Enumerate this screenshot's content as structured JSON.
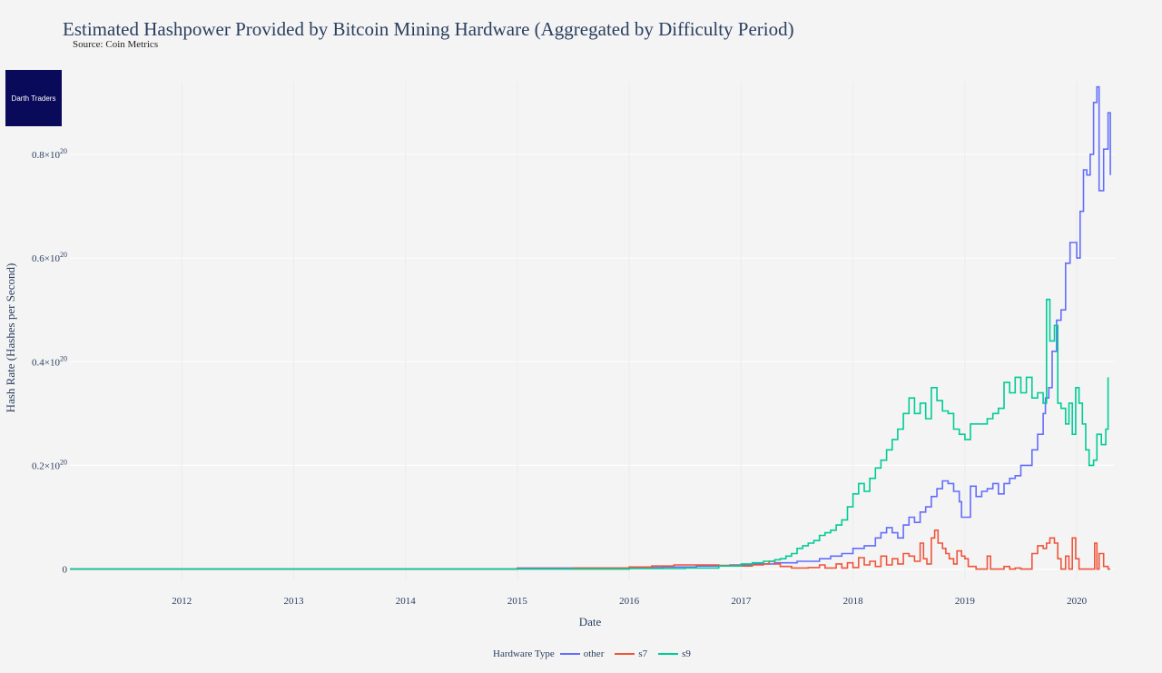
{
  "header": {
    "title": "Estimated Hashpower Provided by Bitcoin Mining Hardware  (Aggregated by Difficulty Period)",
    "subtitle": "Source: Coin Metrics"
  },
  "logo": {
    "text": "Darth Traders"
  },
  "legend": {
    "title": "Hardware Type"
  },
  "chart_data": {
    "type": "line",
    "line_shape": "step",
    "title": "Estimated Hashpower Provided by Bitcoin Mining Hardware  (Aggregated by Difficulty Period)",
    "xlabel": "Date",
    "ylabel": "Hash Rate (Hashes per Second)",
    "xlim": [
      2011.0,
      2020.34
    ],
    "ylim": [
      -0.02,
      0.94
    ],
    "x_ticks": [
      {
        "value": 2012,
        "label": "2012"
      },
      {
        "value": 2013,
        "label": "2013"
      },
      {
        "value": 2014,
        "label": "2014"
      },
      {
        "value": 2015,
        "label": "2015"
      },
      {
        "value": 2016,
        "label": "2016"
      },
      {
        "value": 2017,
        "label": "2017"
      },
      {
        "value": 2018,
        "label": "2018"
      },
      {
        "value": 2019,
        "label": "2019"
      },
      {
        "value": 2020,
        "label": "2020"
      }
    ],
    "y_ticks": [
      {
        "value": 0,
        "label": "0",
        "exp": ""
      },
      {
        "value": 0.2,
        "label": "0.2×10",
        "exp": "20"
      },
      {
        "value": 0.4,
        "label": "0.4×10",
        "exp": "20"
      },
      {
        "value": 0.6,
        "label": "0.6×10",
        "exp": "20"
      },
      {
        "value": 0.8,
        "label": "0.8×10",
        "exp": "20"
      }
    ],
    "grid": true,
    "legend_position": "bottom-center",
    "series": [
      {
        "name": "other",
        "color": "#636efa",
        "points": [
          [
            2011.0,
            0
          ],
          [
            2014.5,
            0
          ],
          [
            2015.0,
            0.002
          ],
          [
            2015.5,
            0.002
          ],
          [
            2016.0,
            0.003
          ],
          [
            2016.3,
            0.004
          ],
          [
            2016.6,
            0.006
          ],
          [
            2016.9,
            0.008
          ],
          [
            2017.1,
            0.01
          ],
          [
            2017.3,
            0.012
          ],
          [
            2017.5,
            0.015
          ],
          [
            2017.7,
            0.02
          ],
          [
            2017.8,
            0.025
          ],
          [
            2017.9,
            0.03
          ],
          [
            2018.0,
            0.04
          ],
          [
            2018.1,
            0.045
          ],
          [
            2018.2,
            0.06
          ],
          [
            2018.25,
            0.07
          ],
          [
            2018.3,
            0.08
          ],
          [
            2018.35,
            0.07
          ],
          [
            2018.4,
            0.06
          ],
          [
            2018.45,
            0.085
          ],
          [
            2018.5,
            0.1
          ],
          [
            2018.55,
            0.09
          ],
          [
            2018.6,
            0.11
          ],
          [
            2018.65,
            0.12
          ],
          [
            2018.7,
            0.14
          ],
          [
            2018.75,
            0.155
          ],
          [
            2018.8,
            0.17
          ],
          [
            2018.85,
            0.165
          ],
          [
            2018.9,
            0.15
          ],
          [
            2018.95,
            0.13
          ],
          [
            2018.97,
            0.1
          ],
          [
            2019.05,
            0.16
          ],
          [
            2019.1,
            0.14
          ],
          [
            2019.15,
            0.15
          ],
          [
            2019.2,
            0.155
          ],
          [
            2019.25,
            0.165
          ],
          [
            2019.3,
            0.145
          ],
          [
            2019.35,
            0.165
          ],
          [
            2019.4,
            0.175
          ],
          [
            2019.45,
            0.18
          ],
          [
            2019.5,
            0.2
          ],
          [
            2019.55,
            0.2
          ],
          [
            2019.6,
            0.23
          ],
          [
            2019.65,
            0.26
          ],
          [
            2019.7,
            0.3
          ],
          [
            2019.72,
            0.33
          ],
          [
            2019.75,
            0.35
          ],
          [
            2019.78,
            0.42
          ],
          [
            2019.82,
            0.48
          ],
          [
            2019.86,
            0.5
          ],
          [
            2019.9,
            0.59
          ],
          [
            2019.94,
            0.63
          ],
          [
            2019.97,
            0.63
          ],
          [
            2020.0,
            0.6
          ],
          [
            2020.03,
            0.69
          ],
          [
            2020.06,
            0.77
          ],
          [
            2020.09,
            0.76
          ],
          [
            2020.12,
            0.8
          ],
          [
            2020.15,
            0.9
          ],
          [
            2020.18,
            0.93
          ],
          [
            2020.2,
            0.73
          ],
          [
            2020.24,
            0.81
          ],
          [
            2020.28,
            0.88
          ],
          [
            2020.3,
            0.76
          ]
        ]
      },
      {
        "name": "s7",
        "color": "#ef553b",
        "points": [
          [
            2011.0,
            0
          ],
          [
            2014.8,
            0
          ],
          [
            2015.0,
            0.001
          ],
          [
            2015.5,
            0.002
          ],
          [
            2016.0,
            0.004
          ],
          [
            2016.2,
            0.006
          ],
          [
            2016.4,
            0.008
          ],
          [
            2016.6,
            0.008
          ],
          [
            2016.8,
            0.007
          ],
          [
            2017.0,
            0.006
          ],
          [
            2017.1,
            0.008
          ],
          [
            2017.2,
            0.01
          ],
          [
            2017.25,
            0.015
          ],
          [
            2017.3,
            0.01
          ],
          [
            2017.35,
            0.005
          ],
          [
            2017.45,
            0.002
          ],
          [
            2017.6,
            0.003
          ],
          [
            2017.7,
            0.008
          ],
          [
            2017.75,
            0.002
          ],
          [
            2017.85,
            0.01
          ],
          [
            2017.9,
            0.002
          ],
          [
            2017.95,
            0.012
          ],
          [
            2018.0,
            0.003
          ],
          [
            2018.05,
            0.022
          ],
          [
            2018.1,
            0.008
          ],
          [
            2018.15,
            0.015
          ],
          [
            2018.2,
            0.005
          ],
          [
            2018.25,
            0.025
          ],
          [
            2018.3,
            0.008
          ],
          [
            2018.35,
            0.02
          ],
          [
            2018.4,
            0.01
          ],
          [
            2018.45,
            0.03
          ],
          [
            2018.5,
            0.025
          ],
          [
            2018.55,
            0.015
          ],
          [
            2018.6,
            0.05
          ],
          [
            2018.63,
            0.02
          ],
          [
            2018.66,
            0.01
          ],
          [
            2018.7,
            0.06
          ],
          [
            2018.73,
            0.075
          ],
          [
            2018.76,
            0.05
          ],
          [
            2018.8,
            0.04
          ],
          [
            2018.83,
            0.03
          ],
          [
            2018.86,
            0.02
          ],
          [
            2018.9,
            0.01
          ],
          [
            2018.93,
            0.035
          ],
          [
            2018.97,
            0.025
          ],
          [
            2019.0,
            0.02
          ],
          [
            2019.03,
            0.005
          ],
          [
            2019.1,
            0.0
          ],
          [
            2019.18,
            0.0
          ],
          [
            2019.2,
            0.025
          ],
          [
            2019.23,
            0.0
          ],
          [
            2019.3,
            0.0
          ],
          [
            2019.35,
            0.005
          ],
          [
            2019.4,
            0.0
          ],
          [
            2019.45,
            0.002
          ],
          [
            2019.5,
            0.0
          ],
          [
            2019.6,
            0.03
          ],
          [
            2019.65,
            0.045
          ],
          [
            2019.7,
            0.04
          ],
          [
            2019.73,
            0.05
          ],
          [
            2019.76,
            0.06
          ],
          [
            2019.8,
            0.05
          ],
          [
            2019.83,
            0.02
          ],
          [
            2019.86,
            0.0
          ],
          [
            2019.9,
            0.025
          ],
          [
            2019.93,
            0.0
          ],
          [
            2019.96,
            0.06
          ],
          [
            2019.99,
            0.02
          ],
          [
            2020.02,
            0.0
          ],
          [
            2020.08,
            0.0
          ],
          [
            2020.12,
            0.0
          ],
          [
            2020.16,
            0.05
          ],
          [
            2020.18,
            0.0
          ],
          [
            2020.2,
            0.03
          ],
          [
            2020.24,
            0.005
          ],
          [
            2020.28,
            0.0
          ],
          [
            2020.3,
            0.0
          ]
        ]
      },
      {
        "name": "s9",
        "color": "#00cc96",
        "points": [
          [
            2011.0,
            0
          ],
          [
            2015.5,
            0
          ],
          [
            2016.0,
            0.001
          ],
          [
            2016.5,
            0.002
          ],
          [
            2016.8,
            0.006
          ],
          [
            2017.0,
            0.01
          ],
          [
            2017.1,
            0.012
          ],
          [
            2017.2,
            0.015
          ],
          [
            2017.3,
            0.018
          ],
          [
            2017.35,
            0.02
          ],
          [
            2017.4,
            0.025
          ],
          [
            2017.45,
            0.03
          ],
          [
            2017.5,
            0.04
          ],
          [
            2017.55,
            0.045
          ],
          [
            2017.6,
            0.05
          ],
          [
            2017.65,
            0.055
          ],
          [
            2017.7,
            0.065
          ],
          [
            2017.75,
            0.07
          ],
          [
            2017.8,
            0.075
          ],
          [
            2017.85,
            0.085
          ],
          [
            2017.9,
            0.095
          ],
          [
            2017.95,
            0.12
          ],
          [
            2018.0,
            0.145
          ],
          [
            2018.05,
            0.165
          ],
          [
            2018.1,
            0.15
          ],
          [
            2018.15,
            0.175
          ],
          [
            2018.2,
            0.195
          ],
          [
            2018.25,
            0.21
          ],
          [
            2018.3,
            0.23
          ],
          [
            2018.35,
            0.25
          ],
          [
            2018.4,
            0.27
          ],
          [
            2018.45,
            0.3
          ],
          [
            2018.5,
            0.33
          ],
          [
            2018.55,
            0.3
          ],
          [
            2018.6,
            0.32
          ],
          [
            2018.65,
            0.29
          ],
          [
            2018.7,
            0.35
          ],
          [
            2018.75,
            0.325
          ],
          [
            2018.8,
            0.305
          ],
          [
            2018.85,
            0.3
          ],
          [
            2018.9,
            0.27
          ],
          [
            2018.95,
            0.26
          ],
          [
            2019.0,
            0.25
          ],
          [
            2019.05,
            0.28
          ],
          [
            2019.1,
            0.28
          ],
          [
            2019.15,
            0.28
          ],
          [
            2019.2,
            0.29
          ],
          [
            2019.25,
            0.3
          ],
          [
            2019.3,
            0.31
          ],
          [
            2019.35,
            0.36
          ],
          [
            2019.4,
            0.34
          ],
          [
            2019.45,
            0.37
          ],
          [
            2019.5,
            0.34
          ],
          [
            2019.55,
            0.37
          ],
          [
            2019.6,
            0.33
          ],
          [
            2019.65,
            0.34
          ],
          [
            2019.7,
            0.32
          ],
          [
            2019.73,
            0.52
          ],
          [
            2019.76,
            0.44
          ],
          [
            2019.8,
            0.47
          ],
          [
            2019.83,
            0.32
          ],
          [
            2019.86,
            0.31
          ],
          [
            2019.9,
            0.28
          ],
          [
            2019.93,
            0.32
          ],
          [
            2019.96,
            0.26
          ],
          [
            2019.99,
            0.35
          ],
          [
            2020.02,
            0.32
          ],
          [
            2020.05,
            0.28
          ],
          [
            2020.08,
            0.23
          ],
          [
            2020.11,
            0.2
          ],
          [
            2020.15,
            0.21
          ],
          [
            2020.18,
            0.26
          ],
          [
            2020.22,
            0.24
          ],
          [
            2020.26,
            0.27
          ],
          [
            2020.28,
            0.37
          ]
        ]
      }
    ]
  }
}
